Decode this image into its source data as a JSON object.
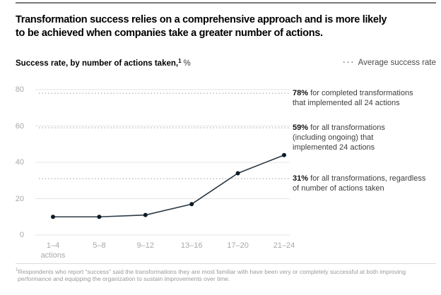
{
  "header": {
    "title_line1": "Transformation success relies on a comprehensive approach and is more likely",
    "title_line2": "to be achieved when companies take a greater number of actions."
  },
  "subtitle": {
    "label": "Success rate, by number of actions taken,",
    "footnote_marker": "1",
    "unit": "%"
  },
  "legend": {
    "dots": "···",
    "label": "Average success rate"
  },
  "chart_data": {
    "type": "line",
    "title": "Success rate, by number of actions taken, %",
    "categories": [
      "1–4",
      "5–8",
      "9–12",
      "13–16",
      "17–20",
      "21–24"
    ],
    "first_category_suffix": "actions",
    "values": [
      10,
      10,
      11,
      17,
      34,
      44
    ],
    "series_name": "Success rate by number of actions taken",
    "y_ticks": [
      0,
      20,
      40,
      60,
      80
    ],
    "ylim": [
      0,
      80
    ],
    "grid": "horizontal solid light-gray lines at each y tick",
    "legend_position": "top-right",
    "legend_label": "Average success rate",
    "reference_lines": [
      {
        "value": 78,
        "label_value": "78%",
        "label_text": "for completed transformations that implemented all 24 actions"
      },
      {
        "value": 59,
        "label_value": "59%",
        "label_text": "for all transformations (including ongoing) that implemented 24 actions"
      },
      {
        "value": 31,
        "label_value": "31%",
        "label_text": "for all transformations, regardless of number of actions taken"
      }
    ],
    "colors": {
      "line": "#2a3844",
      "point": "#0c1b28",
      "gridline": "#e4e4e4",
      "reference_dotted": "#b3b3b3",
      "axis_label": "#a8a8a8"
    }
  },
  "footnote": {
    "marker": "1",
    "line1": "Respondents who report “success” said the transformations they are most familiar with have been very or completely successful at both improving",
    "line2": "performance and equipping the organization to sustain improvements over time."
  }
}
